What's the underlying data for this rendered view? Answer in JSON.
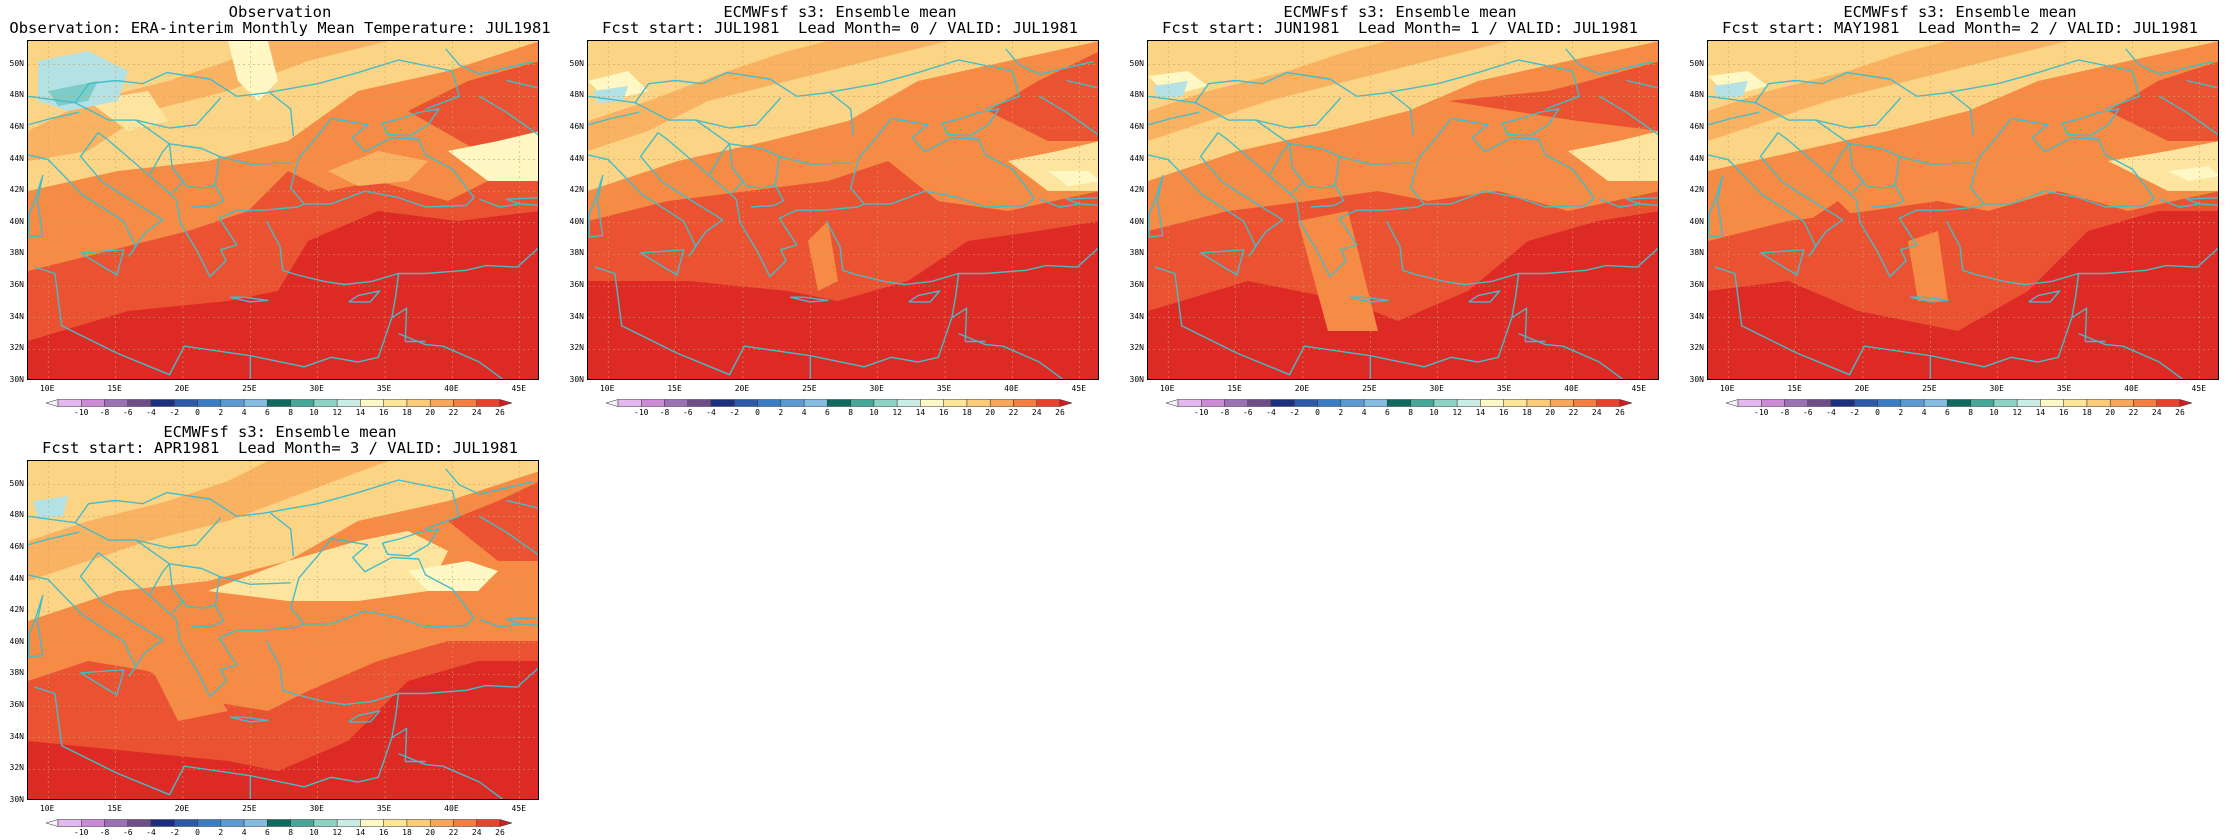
{
  "panels": [
    {
      "title1": "Observation",
      "title2": "Observation: ERA-interim Monthly Mean Temperature: JUL1981"
    },
    {
      "title1": "ECMWFsf s3: Ensemble mean",
      "title2": "Fcst start: JUL1981  Lead Month= 0 / VALID: JUL1981"
    },
    {
      "title1": "ECMWFsf s3: Ensemble mean",
      "title2": "Fcst start: JUN1981  Lead Month= 1 / VALID: JUL1981"
    },
    {
      "title1": "ECMWFsf s3: Ensemble mean",
      "title2": "Fcst start: MAY1981  Lead Month= 2 / VALID: JUL1981"
    },
    {
      "title1": "ECMWFsf s3: Ensemble mean",
      "title2": "Fcst start: APR1981  Lead Month= 3 / VALID: JUL1981"
    }
  ],
  "map": {
    "lon_range": [
      8.5,
      46.5
    ],
    "lat_range": [
      30,
      51.5
    ],
    "lon_ticks": [
      "10E",
      "15E",
      "20E",
      "25E",
      "30E",
      "35E",
      "40E",
      "45E"
    ],
    "lat_ticks": [
      "30N",
      "32N",
      "34N",
      "36N",
      "38N",
      "40N",
      "42N",
      "44N",
      "46N",
      "48N",
      "50N"
    ],
    "colorbar_labels": [
      "-10",
      "-8",
      "-6",
      "-4",
      "-2",
      "0",
      "2",
      "4",
      "6",
      "8",
      "10",
      "12",
      "14",
      "16",
      "18",
      "20",
      "22",
      "24",
      "26"
    ],
    "colorbar_colors": [
      "#f5f0fa",
      "#e3b8ec",
      "#c98bd6",
      "#9d6fb3",
      "#6f4e88",
      "#1b2f7e",
      "#2c5aa6",
      "#3a7dc2",
      "#5b9bd2",
      "#84bce0",
      "#0f6b5f",
      "#47a59a",
      "#8ed2c4",
      "#c9ece4",
      "#fff9c7",
      "#fde59a",
      "#fbcd79",
      "#f8a65a",
      "#f27f41",
      "#e8432e",
      "#d31f21"
    ],
    "colors": {
      "t16": "#fff8c4",
      "t18": "#fde5a0",
      "t20": "#fcd486",
      "t22": "#f9b262",
      "t24": "#f58b44",
      "t26": "#ea5232",
      "t28": "#de2a24",
      "cold": "#b4e2e4",
      "cold2": "#7ccdc9",
      "coast": "#45bcc8",
      "grid": "#c9a56a"
    }
  }
}
